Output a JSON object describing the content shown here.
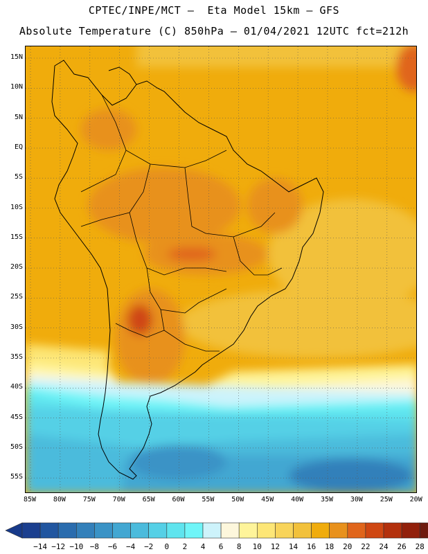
{
  "header": {
    "title_line1": "CPTEC/INPE/MCT –  Eta Model 15km – GFS",
    "title_line2": "Absolute Temperature (C) 850hPa – 01/04/2021 12UTC fct=212h"
  },
  "axes": {
    "lat_labels": [
      "15N",
      "10N",
      "5N",
      "EQ",
      "5S",
      "10S",
      "15S",
      "20S",
      "25S",
      "30S",
      "35S",
      "40S",
      "45S",
      "50S",
      "55S"
    ],
    "lon_labels": [
      "85W",
      "80W",
      "75W",
      "70W",
      "65W",
      "60W",
      "55W",
      "50W",
      "45W",
      "40W",
      "35W",
      "30W",
      "25W",
      "20W"
    ]
  },
  "colorbar": {
    "labels": [
      "-14",
      "-12",
      "-10",
      "-8",
      "-6",
      "-4",
      "-2",
      "0",
      "2",
      "4",
      "6",
      "8",
      "10",
      "12",
      "14",
      "16",
      "18",
      "20",
      "22",
      "24",
      "26",
      "28"
    ],
    "colors": [
      "#1b3f8f",
      "#2156a0",
      "#2a6cae",
      "#3380ba",
      "#3a93c6",
      "#42a7d2",
      "#4bbbdc",
      "#55d0e6",
      "#5fe4ee",
      "#6ff5f8",
      "#cdf3fb",
      "#fdf7dc",
      "#fef49a",
      "#fde676",
      "#f8d45a",
      "#f2c13b",
      "#f0ac0c",
      "#e8911c",
      "#e0651b",
      "#cf4712",
      "#b3300c",
      "#92200b",
      "#6e1a0e"
    ],
    "low_end_color": "#173a8a",
    "high_end_color": "#6b0f1d"
  }
}
